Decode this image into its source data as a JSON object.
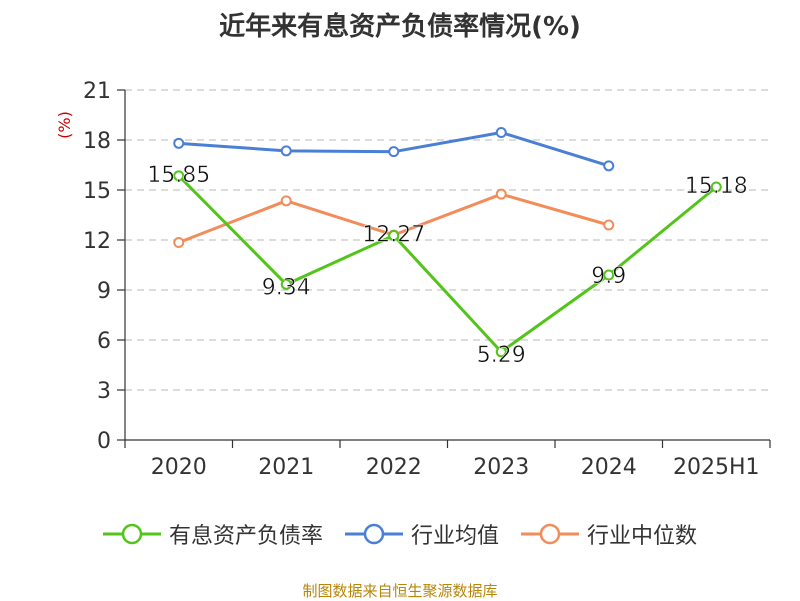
{
  "header": {
    "title": "近年来有息资产负债率情况(%)"
  },
  "footer": {
    "source": "制图数据来自恒生聚源数据库"
  },
  "chart_data": {
    "type": "line",
    "title": "近年来有息资产负债率情况(%)",
    "xlabel": "",
    "ylabel": "(%)",
    "categories": [
      "2020",
      "2021",
      "2022",
      "2023",
      "2024",
      "2025H1"
    ],
    "ylim": [
      0,
      21
    ],
    "yticks": [
      0,
      3,
      6,
      9,
      12,
      15,
      18,
      21
    ],
    "grid": true,
    "legend_position": "bottom",
    "series": [
      {
        "name": "有息资产负债率",
        "color": "#52c41a",
        "values": [
          15.85,
          9.34,
          12.27,
          5.29,
          9.9,
          15.18
        ],
        "labels": [
          "15.85",
          "9.34",
          "12.27",
          "5.29",
          "9.9",
          "15.18"
        ]
      },
      {
        "name": "行业均值",
        "color": "#4a7fd6",
        "values": [
          17.8,
          17.35,
          17.3,
          18.45,
          16.45,
          null
        ]
      },
      {
        "name": "行业中位数",
        "color": "#f28c5a",
        "values": [
          11.85,
          14.35,
          12.3,
          14.75,
          12.9,
          null
        ]
      }
    ]
  }
}
